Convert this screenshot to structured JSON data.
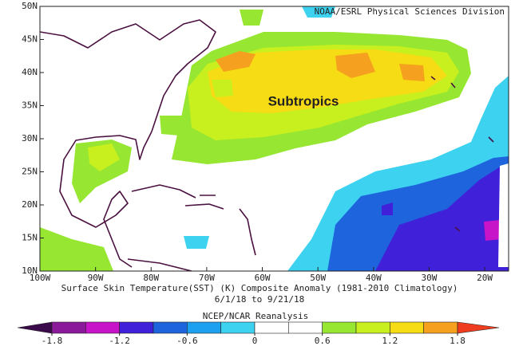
{
  "header": {
    "credit": "NOAA/ESRL Physical Sciences Division"
  },
  "map": {
    "annotation": "Subtropics",
    "lon_range": [
      -100,
      -15.7
    ],
    "lat_range": [
      10,
      50
    ],
    "lon_ticks": [
      {
        "value": -100,
        "label": "100W"
      },
      {
        "value": -90,
        "label": "90W"
      },
      {
        "value": -80,
        "label": "80W"
      },
      {
        "value": -70,
        "label": "70W"
      },
      {
        "value": -60,
        "label": "60W"
      },
      {
        "value": -50,
        "label": "50W"
      },
      {
        "value": -40,
        "label": "40W"
      },
      {
        "value": -30,
        "label": "30W"
      },
      {
        "value": -20,
        "label": "20W"
      }
    ],
    "lat_ticks": [
      {
        "value": 10,
        "label": "10N"
      },
      {
        "value": 15,
        "label": "15N"
      },
      {
        "value": 20,
        "label": "20N"
      },
      {
        "value": 25,
        "label": "25N"
      },
      {
        "value": 30,
        "label": "30N"
      },
      {
        "value": 35,
        "label": "35N"
      },
      {
        "value": 40,
        "label": "40N"
      },
      {
        "value": 45,
        "label": "45N"
      },
      {
        "value": 50,
        "label": "50N"
      }
    ]
  },
  "caption": {
    "line1": "Surface Skin Temperature(SST) (K) Composite Anomaly (1981-2010 Climatology)",
    "line2": "6/1/18  to 9/21/18"
  },
  "colorbar": {
    "title": "NCEP/NCAR Reanalysis",
    "ticks": [
      -1.8,
      -1.2,
      -0.6,
      0,
      0.6,
      1.2,
      1.8
    ],
    "levels": [
      -1.8,
      -1.5,
      -1.2,
      -0.9,
      -0.6,
      -0.3,
      0,
      0.3,
      0.6,
      0.9,
      1.2,
      1.5,
      1.8
    ],
    "colors": [
      "#3a0a4a",
      "#8a1a9a",
      "#c814c8",
      "#4020d8",
      "#1e64dc",
      "#1ea0f0",
      "#3cd2f0",
      "#ffffff",
      "#ffffff",
      "#96e632",
      "#c8f01e",
      "#f5dc14",
      "#f5a01e",
      "#f03c1e"
    ]
  }
}
